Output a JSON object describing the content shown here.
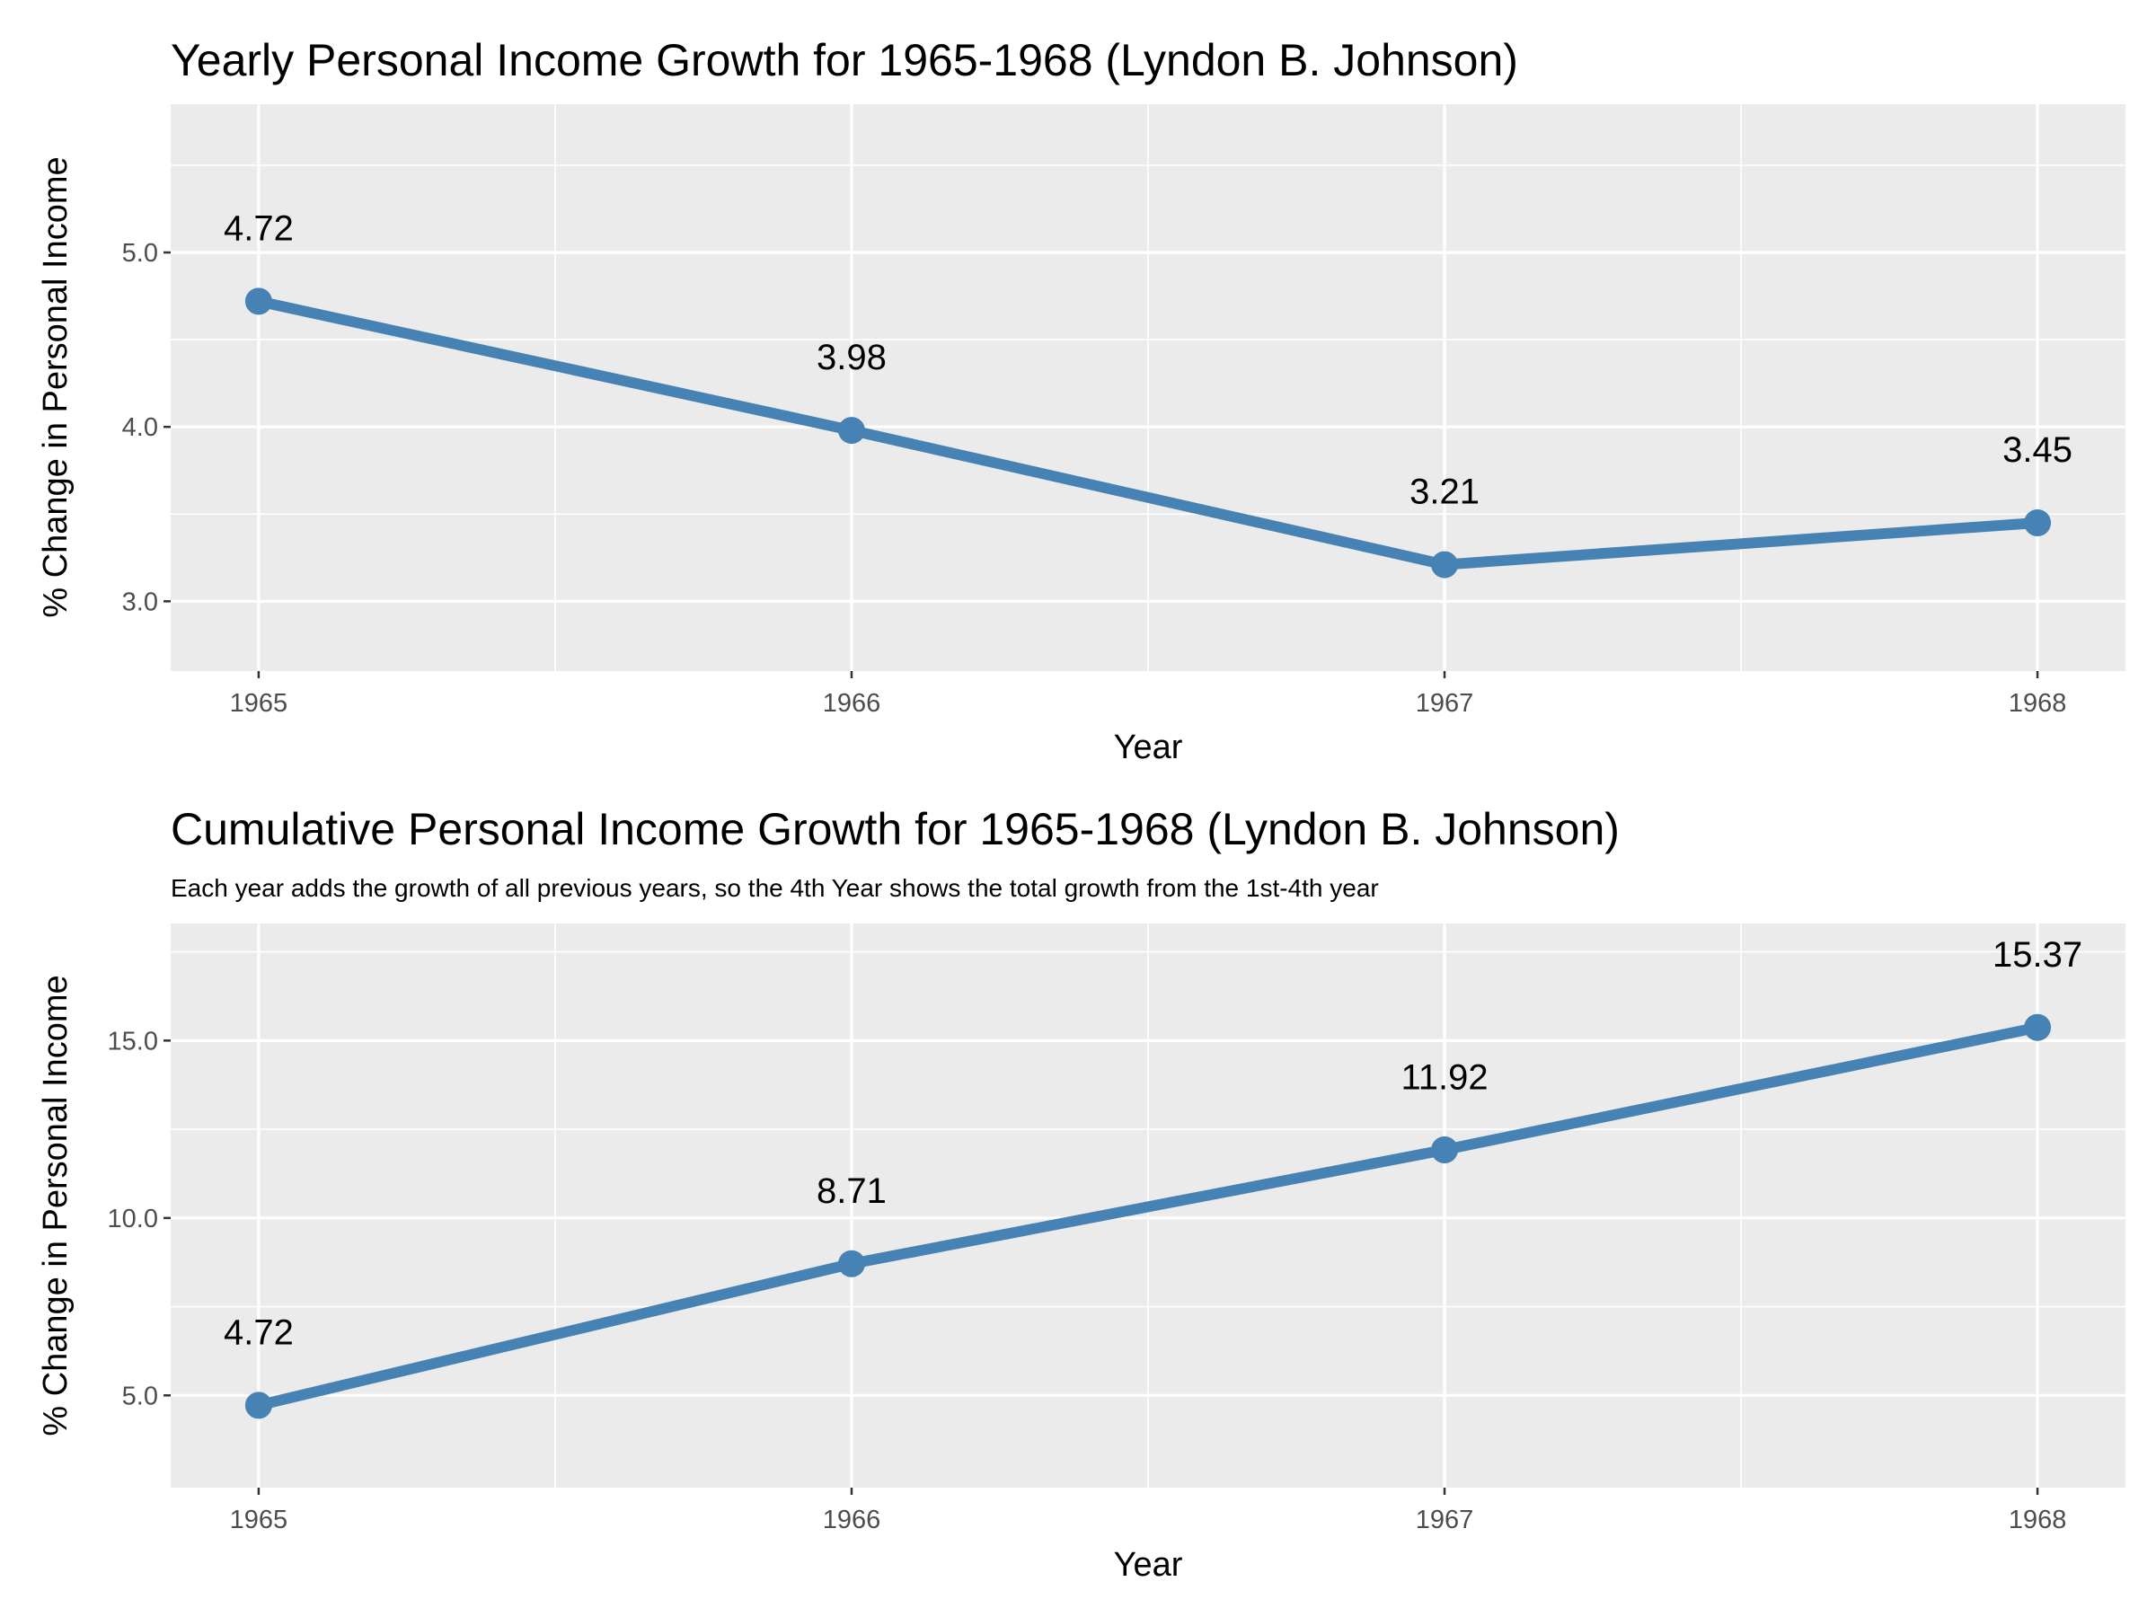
{
  "chart_data": [
    {
      "type": "line",
      "title": "Yearly Personal Income Growth for 1965-1968 (Lyndon B. Johnson)",
      "subtitle": "",
      "xlabel": "Year",
      "ylabel": "% Change in Personal Income",
      "categories": [
        "1965",
        "1966",
        "1967",
        "1968"
      ],
      "values": [
        4.72,
        3.98,
        3.21,
        3.45
      ],
      "data_labels": [
        "4.72",
        "3.98",
        "3.21",
        "3.45"
      ],
      "ylim": [
        2.6,
        5.85
      ],
      "yticks": [
        3.0,
        4.0,
        5.0
      ],
      "ytick_labels": [
        "3.0",
        "4.0",
        "5.0"
      ],
      "ygrid_minor": [
        3.5,
        4.5,
        5.5
      ],
      "grid": true,
      "legend": "none",
      "colors": {
        "line": "#4682b4",
        "panel": "#ebebeb",
        "grid": "#ffffff"
      }
    },
    {
      "type": "line",
      "title": "Cumulative Personal Income Growth for 1965-1968 (Lyndon B. Johnson)",
      "subtitle": "Each year adds the growth of all previous years, so the 4th Year shows the total growth from the 1st-4th year",
      "xlabel": "Year",
      "ylabel": "% Change in Personal Income",
      "categories": [
        "1965",
        "1966",
        "1967",
        "1968"
      ],
      "values": [
        4.72,
        8.71,
        11.92,
        15.37
      ],
      "data_labels": [
        "4.72",
        "8.71",
        "11.92",
        "15.37"
      ],
      "ylim": [
        2.4,
        18.3
      ],
      "yticks": [
        5.0,
        10.0,
        15.0
      ],
      "ytick_labels": [
        "5.0",
        "10.0",
        "15.0"
      ],
      "ygrid_minor": [
        7.5,
        12.5,
        17.5
      ],
      "grid": true,
      "legend": "none",
      "colors": {
        "line": "#4682b4",
        "panel": "#ebebeb",
        "grid": "#ffffff"
      }
    }
  ]
}
